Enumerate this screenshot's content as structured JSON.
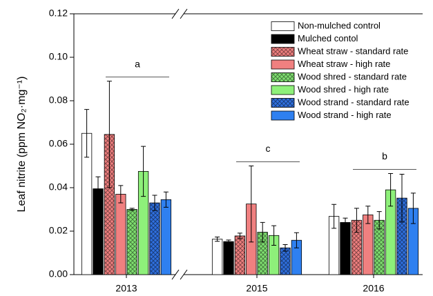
{
  "chart_data": {
    "type": "bar",
    "ylabel": "Leaf nitrite (ppm NO₂·mg⁻¹)",
    "categories": [
      "2013",
      "2015",
      "2016"
    ],
    "ylim": [
      0,
      0.12
    ],
    "yticks": [
      {
        "value": 0,
        "label": "0.00"
      },
      {
        "value": 0.02,
        "label": "0.02"
      },
      {
        "value": 0.04,
        "label": "0.04"
      },
      {
        "value": 0.06,
        "label": "0.06"
      },
      {
        "value": 0.08,
        "label": "0.08"
      },
      {
        "value": 0.1,
        "label": "0.10"
      },
      {
        "value": 0.12,
        "label": "0.12"
      }
    ],
    "annotations": [
      "a",
      "c",
      "b"
    ],
    "legend": "upper right",
    "series": [
      {
        "name": "Non-mulched control",
        "color": "#ffffff",
        "hatch": false,
        "values": [
          0.065,
          0.0163,
          0.0268
        ],
        "errors": [
          0.011,
          0.001,
          0.0055
        ]
      },
      {
        "name": "Mulched contol",
        "color": "#000000",
        "hatch": false,
        "values": [
          0.0395,
          0.0152,
          0.024
        ],
        "errors": [
          0.0055,
          0.0007,
          0.002
        ]
      },
      {
        "name": "Wheat straw - standard rate",
        "color": "#f08080",
        "hatch": true,
        "values": [
          0.0645,
          0.0178,
          0.025
        ],
        "errors": [
          0.0245,
          0.0013,
          0.0055
        ]
      },
      {
        "name": "Wheat straw - high rate",
        "color": "#f08080",
        "hatch": false,
        "values": [
          0.037,
          0.0325,
          0.0275
        ],
        "errors": [
          0.004,
          0.0175,
          0.004
        ]
      },
      {
        "name": "Wood shred - standard rate",
        "color": "#80e070",
        "hatch": true,
        "values": [
          0.03,
          0.0195,
          0.025
        ],
        "errors": [
          0.0005,
          0.0045,
          0.004
        ]
      },
      {
        "name": "Wood shred - high rate",
        "color": "#8ef07a",
        "hatch": false,
        "values": [
          0.0475,
          0.018,
          0.039
        ],
        "errors": [
          0.0115,
          0.0045,
          0.0075
        ]
      },
      {
        "name": "Wood strand - standard rate",
        "color": "#3070e0",
        "hatch": true,
        "values": [
          0.033,
          0.0123,
          0.0352
        ],
        "errors": [
          0.0035,
          0.0015,
          0.011
        ]
      },
      {
        "name": "Wood strand - high rate",
        "color": "#2f80f0",
        "hatch": false,
        "values": [
          0.0345,
          0.0158,
          0.0305
        ],
        "errors": [
          0.0035,
          0.0035,
          0.007
        ]
      }
    ]
  }
}
